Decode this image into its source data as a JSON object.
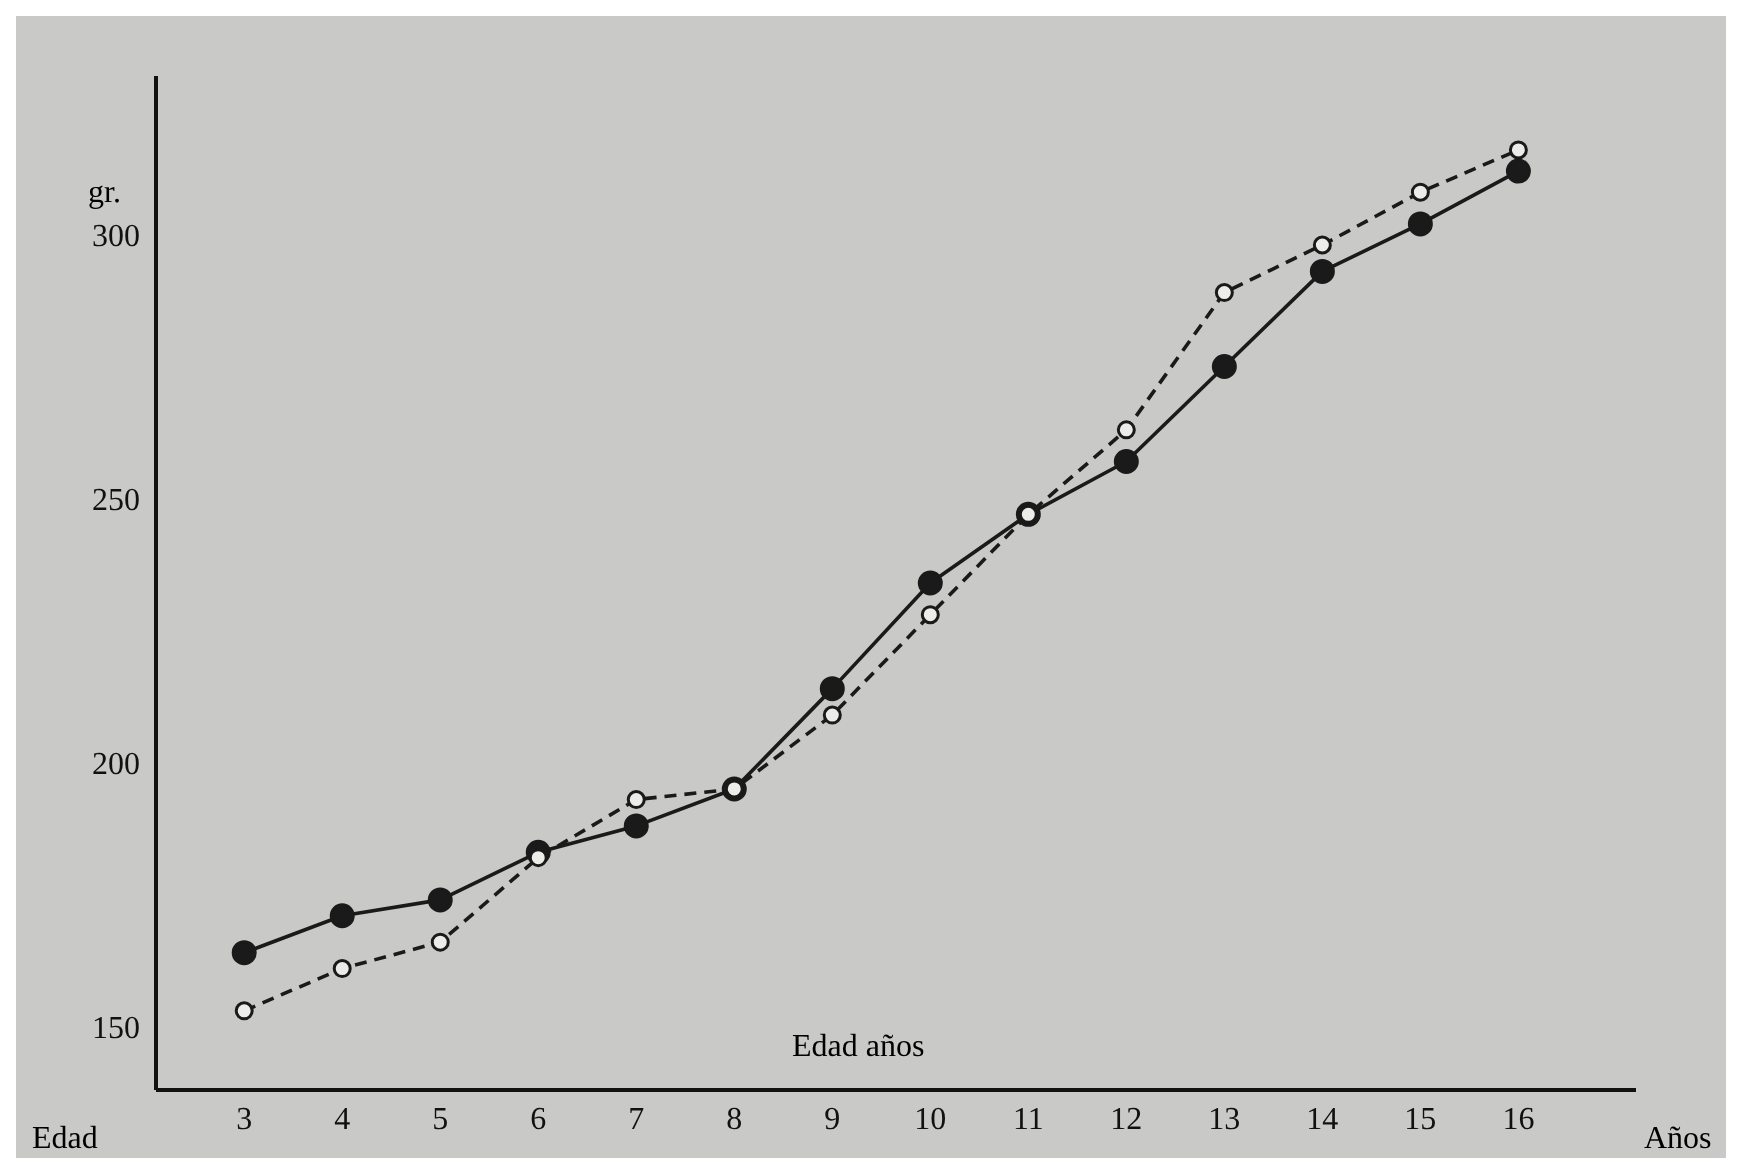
{
  "chart_data": {
    "type": "line",
    "ylabel": "gr.",
    "xlabel": "Años",
    "annotations": [
      "Edad años",
      "Edad"
    ],
    "categories": [
      "3",
      "4",
      "5",
      "6",
      "7",
      "8",
      "9",
      "10",
      "11",
      "12",
      "13",
      "14",
      "15",
      "16"
    ],
    "series": [
      {
        "color": "#1a1a1a",
        "line_style": "solid",
        "values": [
          164,
          171,
          174,
          183,
          188,
          195,
          214,
          234,
          247,
          257,
          275,
          293,
          302,
          312
        ]
      },
      {
        "color": "#1a1a1a",
        "line_style": "dashed",
        "values": [
          153,
          161,
          166,
          182,
          193,
          195,
          209,
          228,
          247,
          263,
          289,
          298,
          308,
          316
        ]
      }
    ],
    "ylim": [
      138,
      330
    ],
    "yticks": [
      150,
      200,
      250,
      300
    ],
    "marker": "circle",
    "grid": false,
    "legend": false
  }
}
